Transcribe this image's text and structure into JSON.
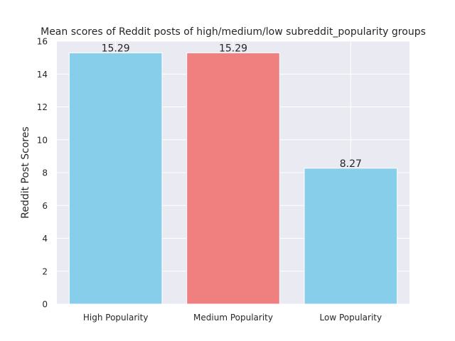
{
  "chart_data": {
    "type": "bar",
    "title": "Mean scores of Reddit posts of high/medium/low subreddit_popularity groups",
    "xlabel": "",
    "ylabel": "Reddit Post Scores",
    "categories": [
      "High Popularity",
      "Medium Popularity",
      "Low Popularity"
    ],
    "values": [
      15.29,
      15.29,
      8.27
    ],
    "data_labels": [
      "15.29",
      "15.29",
      "8.27"
    ],
    "bar_colors": [
      "#87CEEB",
      "#F08080",
      "#87CEEB"
    ],
    "ylim": [
      0,
      16
    ],
    "yticks": [
      0,
      2,
      4,
      6,
      8,
      10,
      12,
      14,
      16
    ],
    "grid": true,
    "plot_background": "#EAEAF2",
    "grid_color": "#FFFFFF"
  }
}
